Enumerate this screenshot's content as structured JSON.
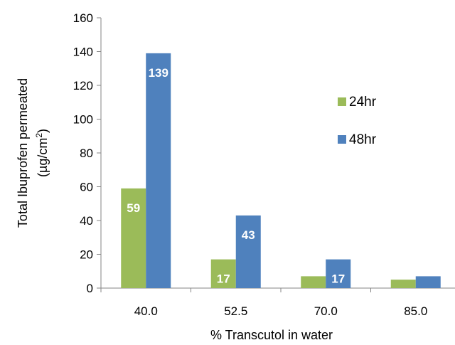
{
  "chart_data": {
    "type": "bar",
    "title": "",
    "xlabel": "% Transcutol in water",
    "ylabel_line1": "Total Ibuprofen permeated",
    "ylabel_line2_prefix": "(µg/cm",
    "ylabel_line2_sup": "2",
    "ylabel_line2_suffix": ")",
    "categories": [
      "40.0",
      "52.5",
      "70.0",
      "85.0"
    ],
    "ylim": [
      0,
      160
    ],
    "yticks": [
      0,
      20,
      40,
      60,
      80,
      100,
      120,
      140,
      160
    ],
    "grid": false,
    "legend_position": "right",
    "series": [
      {
        "name": "24hr",
        "color": "#9bbb59",
        "values": [
          59,
          17,
          7,
          5
        ],
        "labels": [
          "59",
          "17",
          "",
          ""
        ]
      },
      {
        "name": "48hr",
        "color": "#4f81bd",
        "values": [
          139,
          43,
          17,
          7
        ],
        "labels": [
          "139",
          "43",
          "17",
          ""
        ]
      }
    ]
  }
}
